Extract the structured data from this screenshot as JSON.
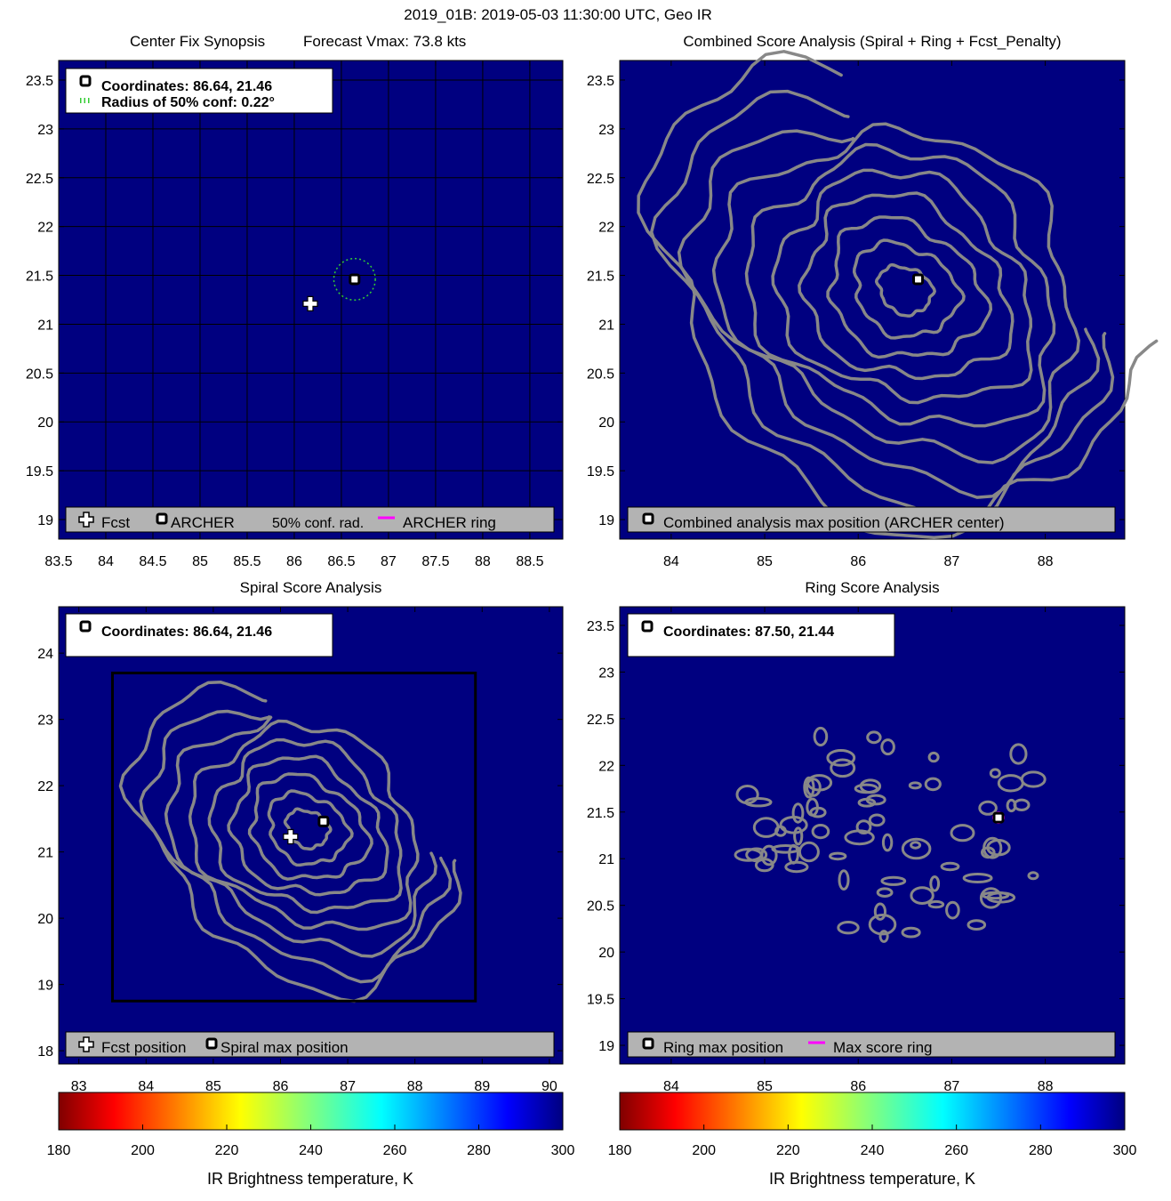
{
  "figure": {
    "title": "2019_01B: 2019-05-03 11:30:00 UTC, Geo IR"
  },
  "colors": {
    "map_background": "#000080",
    "contour": "#888888",
    "legend_box": "#b3b3b3",
    "ring": "#ff00ff",
    "conf_circle": "#33cc33"
  },
  "chart_data": [
    {
      "id": "center-fix",
      "type": "scatter",
      "title": "Center Fix Synopsis",
      "subtitle": "Forecast Vmax: 73.8 kts",
      "xlim": [
        83.5,
        88.85
      ],
      "ylim": [
        18.8,
        23.7
      ],
      "xticks": [
        83.5,
        84,
        84.5,
        85,
        85.5,
        86,
        86.5,
        87,
        87.5,
        88,
        88.5
      ],
      "yticks": [
        19,
        19.5,
        20,
        20.5,
        21,
        21.5,
        22,
        22.5,
        23,
        23.5
      ],
      "grid": true,
      "info_box": [
        "Coordinates: 86.64, 21.46",
        "Radius of 50% conf: 0.22°"
      ],
      "points": [
        {
          "name": "ARCHER",
          "x": 86.64,
          "y": 21.46
        },
        {
          "name": "Fcst",
          "x": 86.17,
          "y": 21.21
        }
      ],
      "confidence_radius_deg": 0.22,
      "legend": [
        "Fcst",
        "ARCHER",
        "50% conf. rad.",
        "ARCHER ring"
      ]
    },
    {
      "id": "combined",
      "type": "contour",
      "title": "Combined Score Analysis (Spiral + Ring + Fcst_Penalty)",
      "xlim": [
        83.45,
        88.85
      ],
      "ylim": [
        18.8,
        23.7
      ],
      "xticks": [
        84,
        85,
        86,
        87,
        88
      ],
      "yticks": [
        19,
        19.5,
        20,
        20.5,
        21,
        21.5,
        22,
        22.5,
        23,
        23.5
      ],
      "points": [
        {
          "name": "Combined analysis max position",
          "x": 86.64,
          "y": 21.46
        }
      ],
      "contour_center": [
        86.5,
        21.35
      ],
      "legend": [
        "Combined analysis max position (ARCHER center)"
      ]
    },
    {
      "id": "spiral",
      "type": "contour",
      "title": "Spiral Score Analysis",
      "xlim": [
        82.7,
        90.2
      ],
      "ylim": [
        17.8,
        24.7
      ],
      "xticks": [
        83,
        84,
        85,
        86,
        87,
        88,
        89,
        90
      ],
      "yticks": [
        18,
        19,
        20,
        21,
        22,
        23,
        24
      ],
      "info_box": [
        "Coordinates: 86.64, 21.46"
      ],
      "points": [
        {
          "name": "Spiral max",
          "x": 86.64,
          "y": 21.46
        },
        {
          "name": "Fcst",
          "x": 86.15,
          "y": 21.23
        }
      ],
      "search_box": {
        "x": [
          83.5,
          88.9
        ],
        "y": [
          18.75,
          23.7
        ]
      },
      "contour_center": [
        86.4,
        21.35
      ],
      "legend": [
        "Fcst position",
        "Spiral max position"
      ]
    },
    {
      "id": "ring",
      "type": "contour",
      "title": "Ring Score Analysis",
      "xlim": [
        83.45,
        88.85
      ],
      "ylim": [
        18.8,
        23.7
      ],
      "xticks": [
        84,
        85,
        86,
        87,
        88
      ],
      "yticks": [
        19,
        19.5,
        20,
        20.5,
        21,
        21.5,
        22,
        22.5,
        23,
        23.5
      ],
      "info_box": [
        "Coordinates: 87.50, 21.44"
      ],
      "points": [
        {
          "name": "Ring max",
          "x": 87.5,
          "y": 21.44
        }
      ],
      "legend": [
        "Ring max position",
        "Max score ring"
      ]
    }
  ],
  "colorbars": [
    {
      "label": "IR Brightness temperature, K",
      "range": [
        180,
        300
      ],
      "ticks": [
        180,
        200,
        220,
        240,
        260,
        280,
        300
      ]
    },
    {
      "label": "IR Brightness temperature, K",
      "range": [
        180,
        300
      ],
      "ticks": [
        180,
        200,
        220,
        240,
        260,
        280,
        300
      ]
    }
  ]
}
